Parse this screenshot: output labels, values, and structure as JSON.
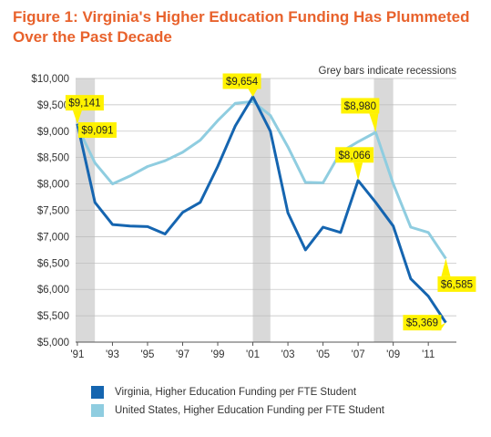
{
  "title_line1": "Figure 1: Virginia's Higher Education Funding Has Plummeted",
  "title_line2": "Over the Past Decade",
  "chart_data": {
    "type": "line",
    "note": "Grey bars indicate recessions",
    "x": [
      1991,
      1992,
      1993,
      1994,
      1995,
      1996,
      1997,
      1998,
      1999,
      2000,
      2001,
      2002,
      2003,
      2004,
      2005,
      2006,
      2007,
      2008,
      2009,
      2010,
      2011,
      2012
    ],
    "xtick_values": [
      1991,
      1993,
      1995,
      1997,
      1999,
      2001,
      2003,
      2005,
      2007,
      2009,
      2011
    ],
    "xtick_labels": [
      "'91",
      "'93",
      "'95",
      "'97",
      "'99",
      "'01",
      "'03",
      "'05",
      "'07",
      "'09",
      "'11"
    ],
    "ylim": [
      5000,
      10000
    ],
    "ytick_values": [
      5000,
      5500,
      6000,
      6500,
      7000,
      7500,
      8000,
      8500,
      9000,
      9500,
      10000
    ],
    "ytick_labels": [
      "$5,000",
      "$5,500",
      "$6,000",
      "$6,500",
      "$7,000",
      "$7,500",
      "$8,000",
      "$8,500",
      "$9,000",
      "$9,500",
      "$10,000"
    ],
    "grid": true,
    "recessions": [
      [
        1990.9,
        1992.0
      ],
      [
        2001.0,
        2002.0
      ],
      [
        2007.9,
        2009.0
      ]
    ],
    "series": [
      {
        "name": "Virginia, Higher Education Funding per FTE Student",
        "color": "#1565b0",
        "values": [
          9141,
          7650,
          7230,
          7200,
          7190,
          7050,
          7460,
          7650,
          8330,
          9100,
          9654,
          9000,
          7450,
          6750,
          7180,
          7080,
          8066,
          7650,
          7200,
          6200,
          5870,
          5369
        ]
      },
      {
        "name": "United States, Higher Education Funding per FTE Student",
        "color": "#8fcde0",
        "values": [
          9091,
          8400,
          8000,
          8150,
          8330,
          8440,
          8600,
          8830,
          9200,
          9530,
          9560,
          9300,
          8700,
          8030,
          8020,
          8600,
          8800,
          8980,
          8000,
          7180,
          7080,
          6585
        ]
      }
    ],
    "annotations": [
      {
        "text": "$9,141",
        "series": 0,
        "x": 1991
      },
      {
        "text": "$9,091",
        "series": 1,
        "x": 1991
      },
      {
        "text": "$9,654",
        "series": 0,
        "x": 2001
      },
      {
        "text": "$8,980",
        "series": 1,
        "x": 2008
      },
      {
        "text": "$8,066",
        "series": 0,
        "x": 2007
      },
      {
        "text": "$6,585",
        "series": 1,
        "x": 2012
      },
      {
        "text": "$5,369",
        "series": 0,
        "x": 2012
      }
    ]
  }
}
